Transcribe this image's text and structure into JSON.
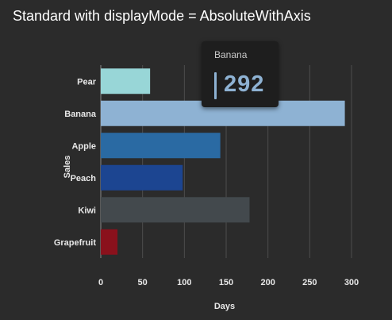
{
  "chart_data": {
    "type": "bar",
    "orientation": "horizontal",
    "title": "Standard with displayMode = AbsoluteWithAxis",
    "xlabel": "Days",
    "ylabel": "Sales",
    "categories": [
      "Pear",
      "Banana",
      "Apple",
      "Peach",
      "Kiwi",
      "Grapefruit"
    ],
    "values": [
      59,
      292,
      143,
      98,
      178,
      20
    ],
    "colors": [
      "#98d6d7",
      "#8eb2d3",
      "#2a6aa3",
      "#1c4591",
      "#43494d",
      "#8a111c"
    ],
    "xlim": [
      0,
      300
    ],
    "xticks": [
      0,
      50,
      100,
      150,
      200,
      250,
      300
    ],
    "grid": true,
    "tooltip": {
      "label": "Banana",
      "value": "292",
      "color": "#8eb2d3"
    }
  }
}
